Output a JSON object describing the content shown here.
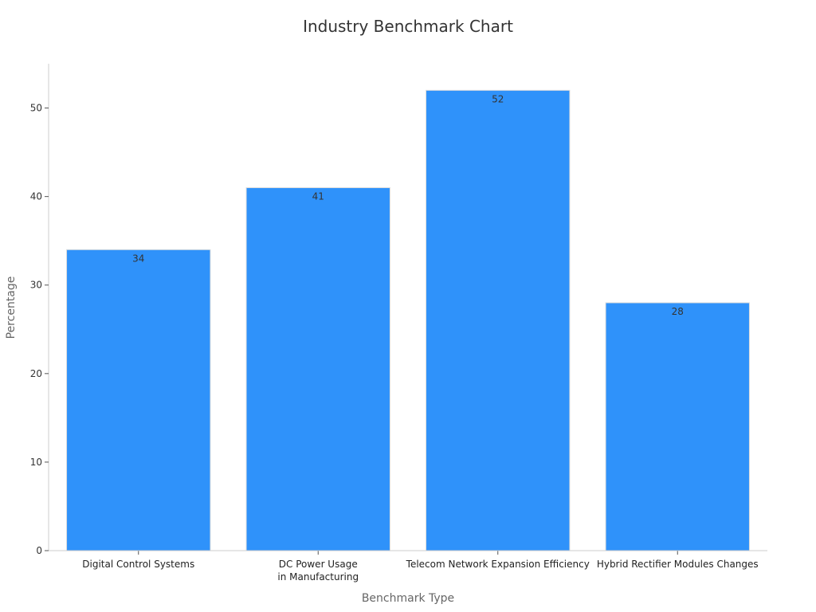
{
  "chart_data": {
    "type": "bar",
    "title": "Industry Benchmark Chart",
    "xlabel": "Benchmark Type",
    "ylabel": "Percentage",
    "categories": [
      [
        "Digital Control Systems"
      ],
      [
        "DC Power Usage",
        "in Manufacturing"
      ],
      [
        "Telecom Network Expansion Efficiency"
      ],
      [
        "Hybrid Rectifier Modules Changes"
      ]
    ],
    "values": [
      34,
      41,
      52,
      28
    ],
    "ylim": [
      0,
      55
    ],
    "yticks": [
      0,
      10,
      20,
      30,
      40,
      50
    ],
    "grid": false,
    "legend": "none",
    "colors": {
      "bar": "#2f92fa",
      "bar_edge": "#dddddd"
    }
  }
}
